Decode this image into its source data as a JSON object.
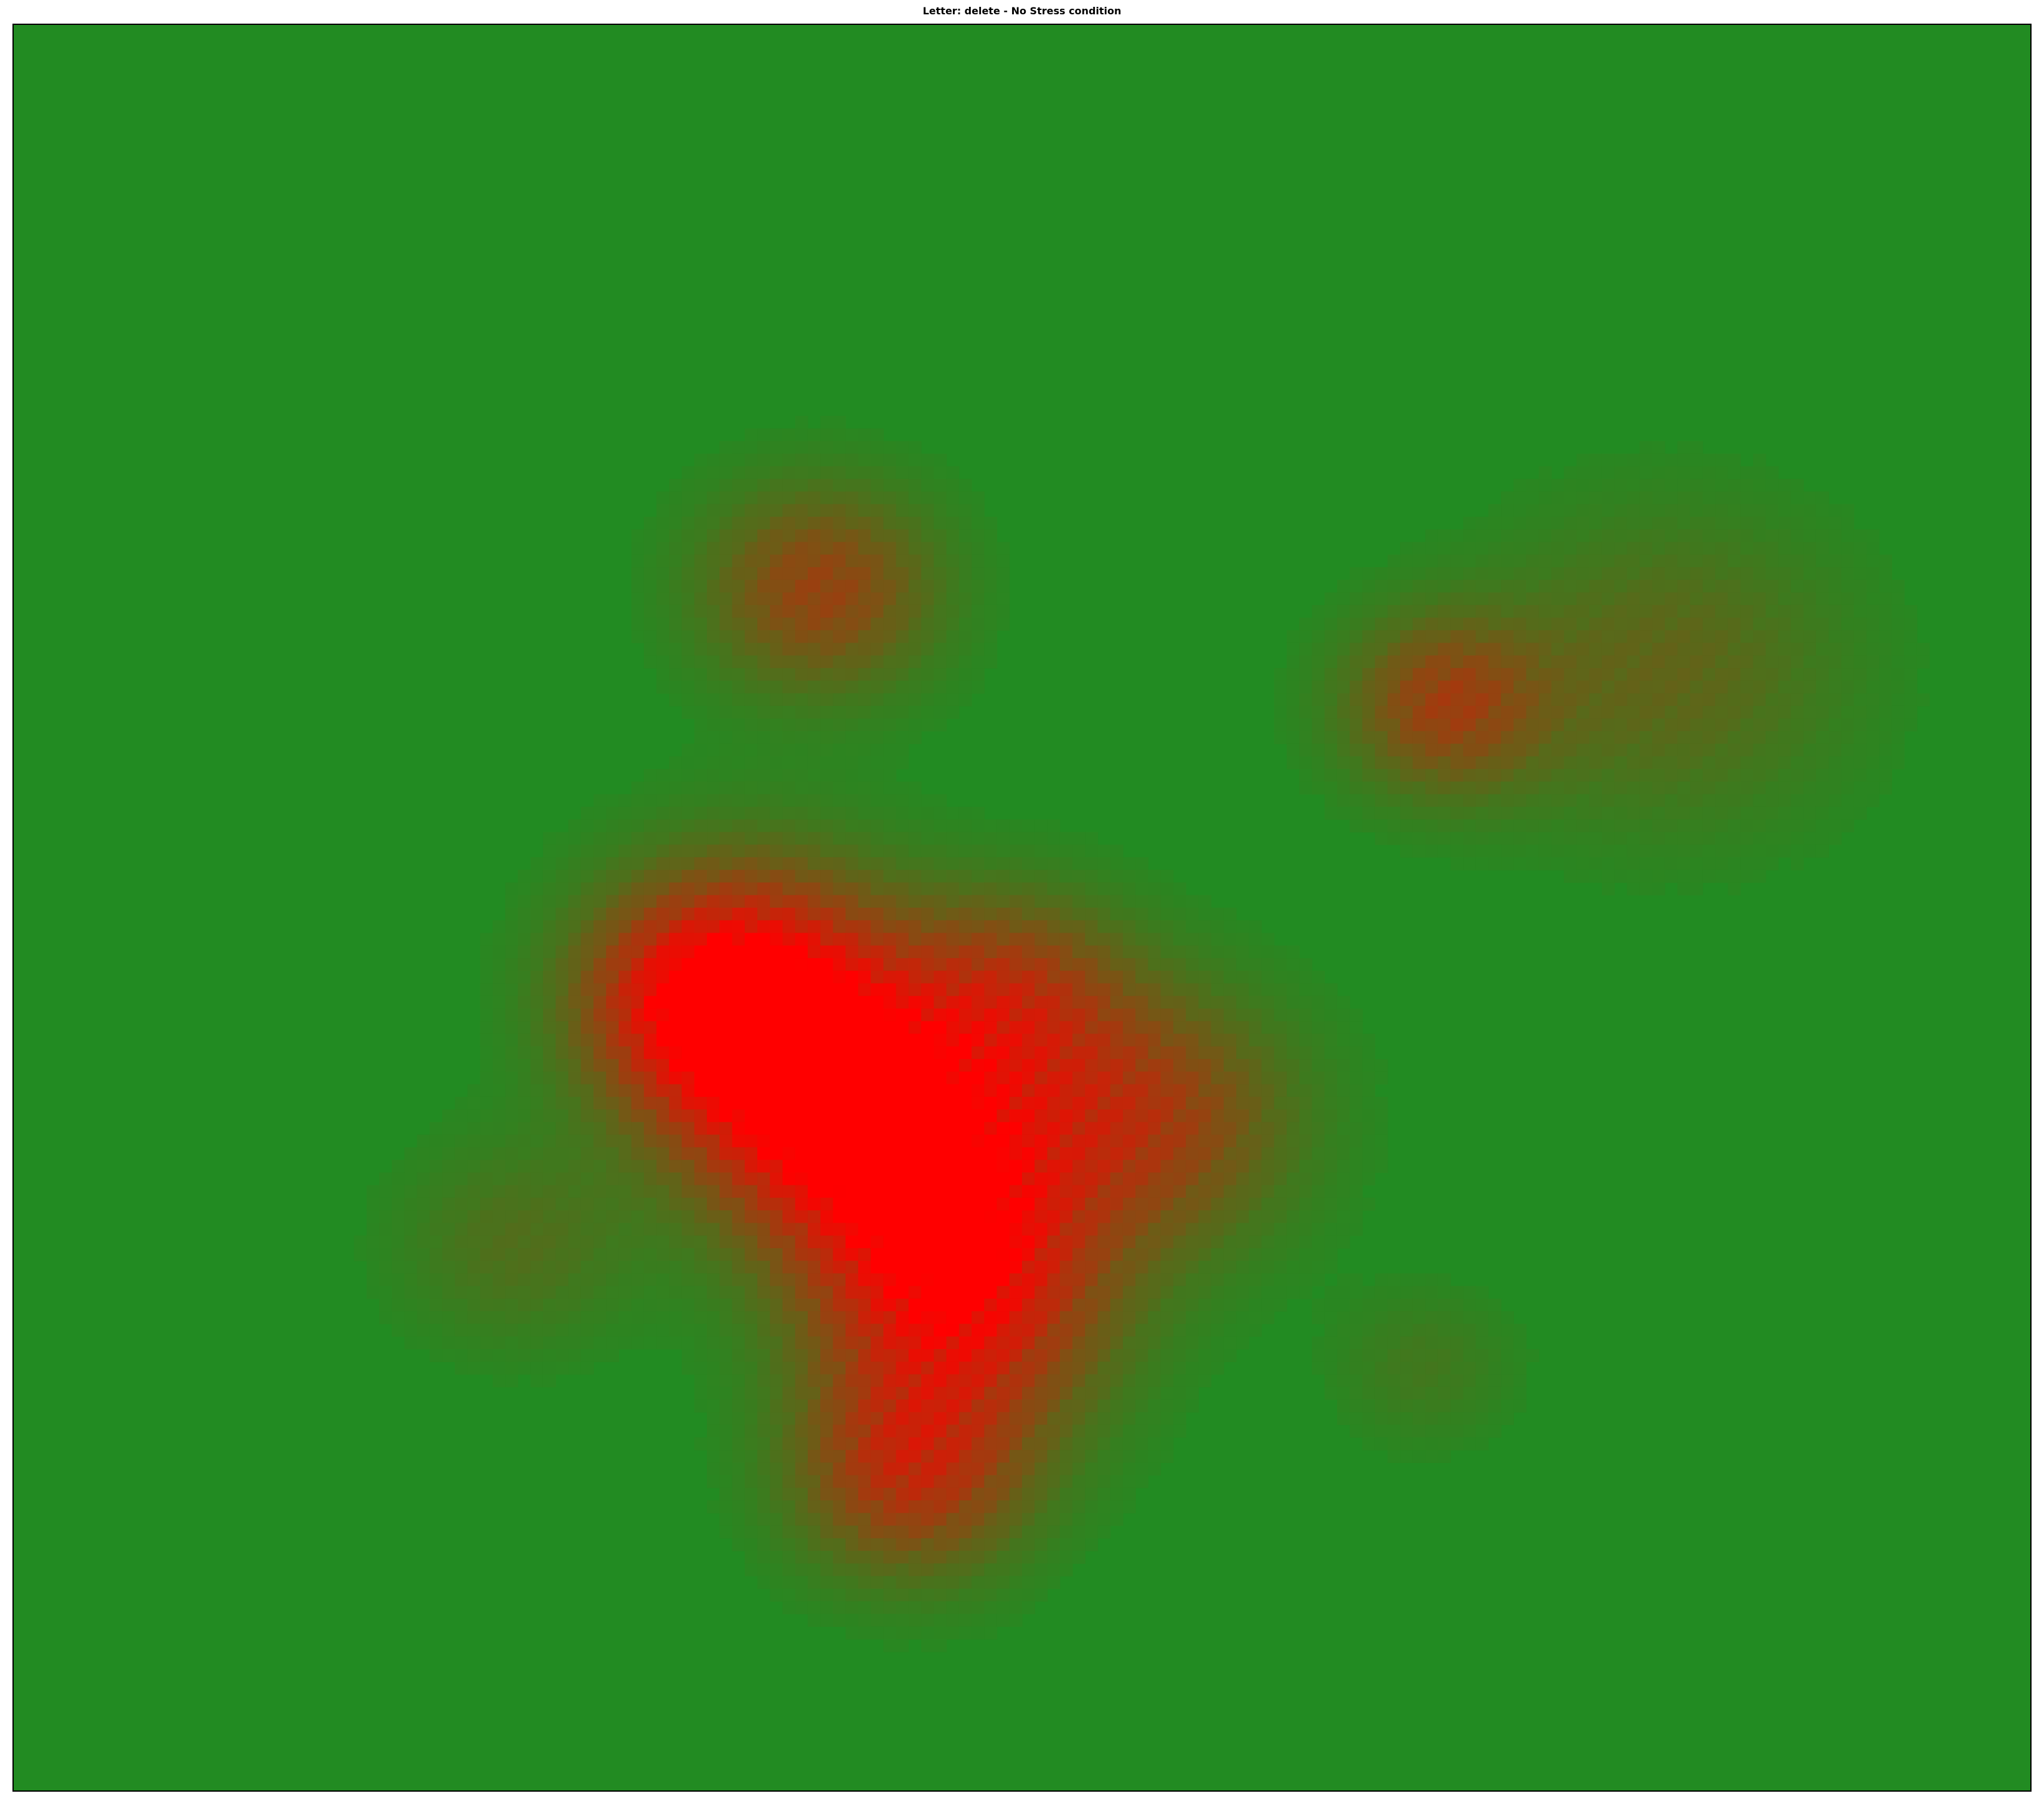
{
  "chart_data": {
    "type": "heatmap",
    "title": "Letter: delete - No Stress condition",
    "xlabel": "",
    "ylabel": "",
    "axes_visible": false,
    "grid": false,
    "legend": "none",
    "colormap": {
      "low": "#228B22",
      "high": "#FF0000"
    },
    "x_range": [
      0,
      1
    ],
    "y_range": [
      0,
      1
    ],
    "hotspots": [
      {
        "x": 0.4,
        "y": 0.605,
        "intensity": 1.0,
        "spread": 0.05
      },
      {
        "x": 0.37,
        "y": 0.54,
        "intensity": 0.7,
        "spread": 0.05
      },
      {
        "x": 0.335,
        "y": 0.555,
        "intensity": 0.55,
        "spread": 0.04
      },
      {
        "x": 0.455,
        "y": 0.66,
        "intensity": 0.75,
        "spread": 0.05
      },
      {
        "x": 0.47,
        "y": 0.73,
        "intensity": 0.75,
        "spread": 0.05
      },
      {
        "x": 0.445,
        "y": 0.82,
        "intensity": 0.65,
        "spread": 0.04
      },
      {
        "x": 0.495,
        "y": 0.55,
        "intensity": 0.55,
        "spread": 0.04
      },
      {
        "x": 0.56,
        "y": 0.62,
        "intensity": 0.6,
        "spread": 0.05
      },
      {
        "x": 0.4,
        "y": 0.32,
        "intensity": 0.55,
        "spread": 0.04
      },
      {
        "x": 0.71,
        "y": 0.385,
        "intensity": 0.55,
        "spread": 0.035
      },
      {
        "x": 0.82,
        "y": 0.365,
        "intensity": 0.3,
        "spread": 0.06
      },
      {
        "x": 0.25,
        "y": 0.69,
        "intensity": 0.22,
        "spread": 0.04
      },
      {
        "x": 0.7,
        "y": 0.76,
        "intensity": 0.15,
        "spread": 0.03
      }
    ]
  }
}
